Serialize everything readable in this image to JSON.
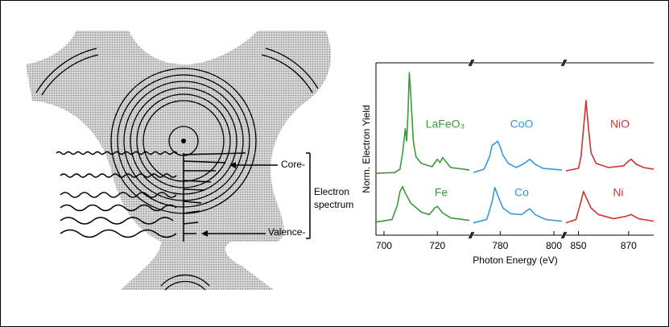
{
  "diagram": {
    "labels": {
      "core": "Core-",
      "spectrum_line1": "Electron",
      "spectrum_line2": "spectrum",
      "valence": "Valence-"
    }
  },
  "chart_data": {
    "type": "line",
    "xlabel": "Photon Energy (eV)",
    "ylabel": "Norm. Electron Yield",
    "ylim": [
      0,
      2
    ],
    "panels": [
      {
        "xlim": [
          697,
          732
        ],
        "xticks": [
          700,
          720
        ]
      },
      {
        "xlim": [
          770,
          803
        ],
        "xticks": [
          780,
          800
        ]
      },
      {
        "xlim": [
          845,
          880
        ],
        "xticks": [
          850,
          870
        ]
      }
    ],
    "series": [
      {
        "name": "LaFeO₃",
        "color": "#3a9a3a",
        "panel": 0,
        "x": [
          697,
          704,
          706,
          707,
          708,
          708.5,
          709,
          709.5,
          710,
          711,
          712,
          714,
          718,
          720,
          721,
          722,
          723,
          725,
          730,
          732
        ],
        "values": [
          0.73,
          0.74,
          0.78,
          0.98,
          1.27,
          1.12,
          1.46,
          1.95,
          1.71,
          1.12,
          0.93,
          0.85,
          0.81,
          0.9,
          0.86,
          0.92,
          0.88,
          0.8,
          0.78,
          0.77
        ]
      },
      {
        "name": "Fe",
        "color": "#3a9a3a",
        "panel": 0,
        "x": [
          697,
          703,
          705,
          706,
          707,
          708,
          710,
          714,
          717,
          719,
          720,
          722,
          725,
          732
        ],
        "values": [
          0.14,
          0.17,
          0.34,
          0.51,
          0.57,
          0.49,
          0.37,
          0.26,
          0.23,
          0.31,
          0.33,
          0.25,
          0.19,
          0.16
        ]
      },
      {
        "name": "CoO",
        "color": "#3399dd",
        "panel": 1,
        "x": [
          770,
          774,
          776,
          777,
          778,
          779,
          780,
          781,
          783,
          786,
          789,
          791,
          793,
          796,
          803
        ],
        "values": [
          0.74,
          0.78,
          0.93,
          1.07,
          1.09,
          1.12,
          1.05,
          0.95,
          0.85,
          0.8,
          0.85,
          0.9,
          0.84,
          0.79,
          0.77
        ]
      },
      {
        "name": "Co",
        "color": "#3399dd",
        "panel": 1,
        "x": [
          770,
          775,
          777,
          778,
          779,
          781,
          784,
          788,
          790,
          791,
          793,
          797,
          803
        ],
        "values": [
          0.13,
          0.17,
          0.39,
          0.56,
          0.47,
          0.31,
          0.24,
          0.23,
          0.28,
          0.3,
          0.23,
          0.17,
          0.15
        ]
      },
      {
        "name": "NiO",
        "color": "#cc3333",
        "panel": 2,
        "x": [
          845,
          850,
          851,
          852,
          853,
          854,
          855,
          857,
          862,
          868,
          870,
          871,
          873,
          876,
          880
        ],
        "values": [
          0.76,
          0.79,
          0.93,
          1.27,
          1.61,
          1.27,
          0.98,
          0.85,
          0.8,
          0.82,
          0.88,
          0.9,
          0.84,
          0.8,
          0.78
        ]
      },
      {
        "name": "Ni",
        "color": "#cc3333",
        "panel": 2,
        "x": [
          845,
          849,
          851,
          852,
          853,
          855,
          858,
          864,
          869,
          871,
          874,
          880
        ],
        "values": [
          0.13,
          0.17,
          0.39,
          0.51,
          0.44,
          0.31,
          0.23,
          0.18,
          0.21,
          0.23,
          0.18,
          0.15
        ]
      }
    ]
  }
}
